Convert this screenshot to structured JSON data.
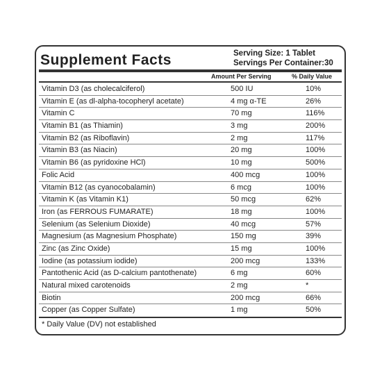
{
  "header": {
    "title": "Supplement Facts",
    "serving_size": "Serving Size: 1 Tablet",
    "servings_per_container": "Servings Per Container:30"
  },
  "table": {
    "columns": [
      "Amount Per Serving",
      "% Daily Value"
    ],
    "rows": [
      [
        "Vitamin D3 (as cholecalciferol)",
        "500 IU",
        "10%"
      ],
      [
        "Vitamin E (as dl-alpha-tocopheryl acetate)",
        "4 mg α-TE",
        "26%"
      ],
      [
        "Vitamin C",
        "70 mg",
        "116%"
      ],
      [
        "Vitamin B1 (as Thiamin)",
        "3 mg",
        "200%"
      ],
      [
        "Vitamin B2 (as Riboflavin)",
        "2 mg",
        "117%"
      ],
      [
        "Vitamin B3 (as Niacin)",
        "20 mg",
        "100%"
      ],
      [
        "Vitamin B6 (as pyridoxine HCl)",
        "10 mg",
        "500%"
      ],
      [
        "Folic Acid",
        "400 mcg",
        "100%"
      ],
      [
        "Vitamin B12 (as cyanocobalamin)",
        "6 mcg",
        "100%"
      ],
      [
        "Vitamin K (as Vitamin K1)",
        "50 mcg",
        "62%"
      ],
      [
        "Iron (as FERROUS FUMARATE)",
        "18 mg",
        "100%"
      ],
      [
        "Selenium (as Selenium Dioxide)",
        "40 mcg",
        "57%"
      ],
      [
        "Magnesium (as Magnesium Phosphate)",
        "150 mg",
        "39%"
      ],
      [
        "Zinc (as Zinc Oxide)",
        "15 mg",
        "100%"
      ],
      [
        "Iodine (as potassium iodide)",
        "200 mcg",
        "133%"
      ],
      [
        "Pantothenic Acid (as D-calcium pantothenate)",
        "6 mg",
        "60%"
      ],
      [
        "Natural mixed carotenoids",
        "2 mg",
        "*"
      ],
      [
        "Biotin",
        "200 mcg",
        "66%"
      ],
      [
        "Copper (as Copper Sulfate)",
        "1 mg",
        "50%"
      ]
    ]
  },
  "footnote": "* Daily Value (DV) not established"
}
